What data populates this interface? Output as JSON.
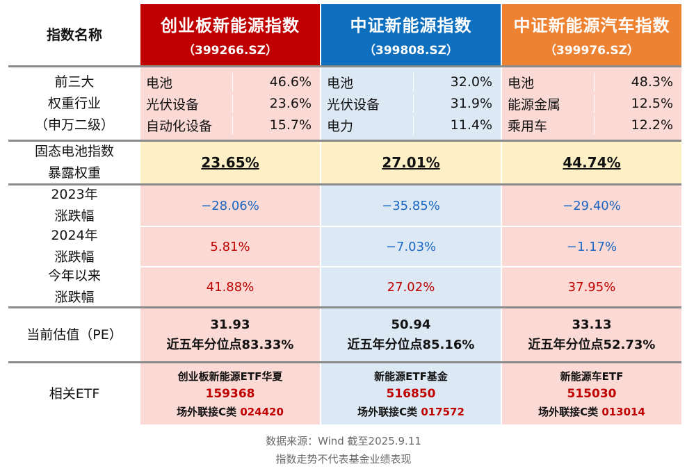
{
  "header": {
    "label": "指数名称",
    "indices": [
      {
        "name": "创业板新能源指数",
        "code": "（399266.SZ）",
        "color": "#c00000"
      },
      {
        "name": "中证新能源指数",
        "code": "（399808.SZ）",
        "color": "#0e6fbf"
      },
      {
        "name": "中证新能源汽车指数",
        "code": "（399976.SZ）",
        "color": "#ee8233"
      }
    ]
  },
  "industry": {
    "label": [
      "前三大",
      "权重行业",
      "（申万二级）"
    ],
    "cols": [
      [
        {
          "name": "电池",
          "pct": "46.6%"
        },
        {
          "name": "光伏设备",
          "pct": "23.6%"
        },
        {
          "name": "自动化设备",
          "pct": "15.7%"
        }
      ],
      [
        {
          "name": "电池",
          "pct": "32.0%"
        },
        {
          "name": "光伏设备",
          "pct": "31.9%"
        },
        {
          "name": "电力",
          "pct": "11.4%"
        }
      ],
      [
        {
          "name": "电池",
          "pct": "48.3%"
        },
        {
          "name": "能源金属",
          "pct": "12.5%"
        },
        {
          "name": "乘用车",
          "pct": "12.2%"
        }
      ]
    ]
  },
  "solid_state": {
    "label": [
      "固态电池指数",
      "暴露权重"
    ],
    "values": [
      "23.65%",
      "27.01%",
      "44.74%"
    ]
  },
  "returns": {
    "rows": [
      {
        "label": [
          "2023年",
          "涨跌幅"
        ],
        "values": [
          "−28.06%",
          "−35.85%",
          "−29.40%"
        ]
      },
      {
        "label": [
          "2024年",
          "涨跌幅"
        ],
        "values": [
          "5.81%",
          "−7.03%",
          "−1.17%"
        ]
      },
      {
        "label": [
          "今年以来",
          "涨跌幅"
        ],
        "values": [
          "41.88%",
          "27.02%",
          "37.95%"
        ]
      }
    ]
  },
  "valuation": {
    "label": "当前估值（PE）",
    "cols": [
      {
        "pe": "31.93",
        "pct": "近五年分位点83.33%"
      },
      {
        "pe": "50.94",
        "pct": "近五年分位点85.16%"
      },
      {
        "pe": "33.13",
        "pct": "近五年分位点52.73%"
      }
    ]
  },
  "etf": {
    "label": "相关ETF",
    "cols": [
      {
        "name": "创业板新能源ETF华夏",
        "code": "159368",
        "off_label": "场外联接C类",
        "off_code": "024420"
      },
      {
        "name": "新能源ETF基金",
        "code": "516850",
        "off_label": "场外联接C类",
        "off_code": "017572"
      },
      {
        "name": "新能源车ETF",
        "code": "515030",
        "off_label": "场外联接C类",
        "off_code": "013014"
      }
    ]
  },
  "footer": {
    "line1": "数据来源：Wind 截至2025.9.11",
    "line2": "指数走势不代表基金业绩表现"
  }
}
